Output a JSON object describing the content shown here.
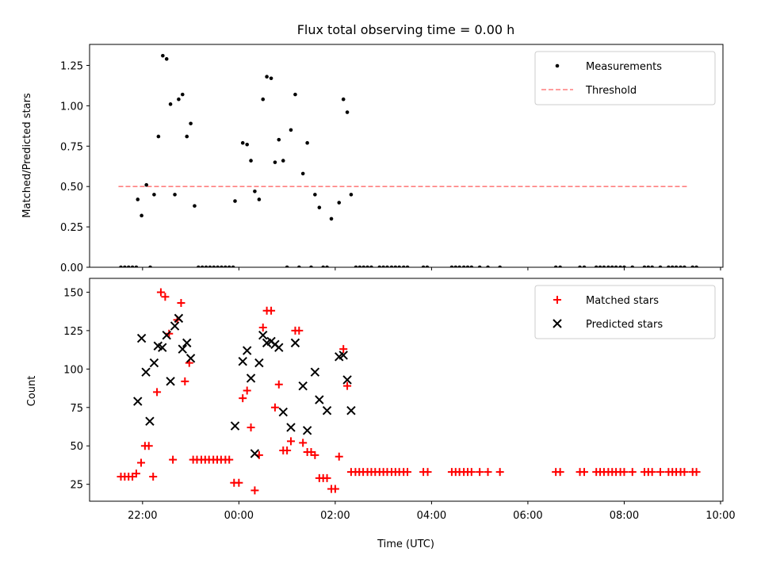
{
  "chart_data": [
    {
      "type": "scatter",
      "title": "Flux total observing time = 0.00 h",
      "xlabel": "",
      "ylabel": "Matched/Predicted stars",
      "x_unit": "hours after 2022-01-01 00:00 UTC",
      "xlim": [
        -3.1,
        10.05
      ],
      "ylim": [
        0,
        1.38
      ],
      "yticks": [
        "0.00",
        "0.25",
        "0.50",
        "0.75",
        "1.00",
        "1.25"
      ],
      "legend": "top-right",
      "threshold": {
        "name": "Threshold",
        "value": 0.5,
        "x_range": [
          -2.5,
          9.3
        ],
        "color": "#ff7f7f",
        "style": "dashed"
      },
      "series": [
        {
          "name": "Measurements",
          "color": "#000000",
          "marker": "dot",
          "points": [
            [
              -2.45,
              0.0
            ],
            [
              -2.37,
              0.0
            ],
            [
              -2.29,
              0.0
            ],
            [
              -2.21,
              0.0
            ],
            [
              -2.13,
              0.0
            ],
            [
              -2.1,
              0.42
            ],
            [
              -2.02,
              0.32
            ],
            [
              -1.92,
              0.51
            ],
            [
              -1.84,
              0.0
            ],
            [
              -1.76,
              0.45
            ],
            [
              -1.67,
              0.81
            ],
            [
              -1.58,
              1.31
            ],
            [
              -1.5,
              1.29
            ],
            [
              -1.42,
              1.01
            ],
            [
              -1.33,
              0.45
            ],
            [
              -1.25,
              1.04
            ],
            [
              -1.17,
              1.07
            ],
            [
              -1.08,
              0.81
            ],
            [
              -1.0,
              0.89
            ],
            [
              -0.92,
              0.38
            ],
            [
              -0.84,
              0.0
            ],
            [
              -0.76,
              0.0
            ],
            [
              -0.68,
              0.0
            ],
            [
              -0.6,
              0.0
            ],
            [
              -0.52,
              0.0
            ],
            [
              -0.44,
              0.0
            ],
            [
              -0.36,
              0.0
            ],
            [
              -0.28,
              0.0
            ],
            [
              -0.2,
              0.0
            ],
            [
              -0.12,
              0.0
            ],
            [
              -0.08,
              0.41
            ],
            [
              0.08,
              0.77
            ],
            [
              0.17,
              0.76
            ],
            [
              0.25,
              0.66
            ],
            [
              0.33,
              0.47
            ],
            [
              0.42,
              0.42
            ],
            [
              0.5,
              1.04
            ],
            [
              0.58,
              1.18
            ],
            [
              0.67,
              1.17
            ],
            [
              0.75,
              0.65
            ],
            [
              0.83,
              0.79
            ],
            [
              0.92,
              0.66
            ],
            [
              1.0,
              0.0
            ],
            [
              1.08,
              0.85
            ],
            [
              1.17,
              1.07
            ],
            [
              1.25,
              0.0
            ],
            [
              1.33,
              0.58
            ],
            [
              1.42,
              0.77
            ],
            [
              1.5,
              0.0
            ],
            [
              1.58,
              0.45
            ],
            [
              1.67,
              0.37
            ],
            [
              1.75,
              0.0
            ],
            [
              1.83,
              0.0
            ],
            [
              1.92,
              0.3
            ],
            [
              2.08,
              0.4
            ],
            [
              2.17,
              1.04
            ],
            [
              2.25,
              0.96
            ],
            [
              2.33,
              0.45
            ],
            [
              2.43,
              0.0
            ],
            [
              2.51,
              0.0
            ],
            [
              2.59,
              0.0
            ],
            [
              2.67,
              0.0
            ],
            [
              2.75,
              0.0
            ],
            [
              2.92,
              0.0
            ],
            [
              3.0,
              0.0
            ],
            [
              3.08,
              0.0
            ],
            [
              3.17,
              0.0
            ],
            [
              3.25,
              0.0
            ],
            [
              3.33,
              0.0
            ],
            [
              3.42,
              0.0
            ],
            [
              3.5,
              0.0
            ],
            [
              3.83,
              0.0
            ],
            [
              3.91,
              0.0
            ],
            [
              4.42,
              0.0
            ],
            [
              4.5,
              0.0
            ],
            [
              4.58,
              0.0
            ],
            [
              4.67,
              0.0
            ],
            [
              4.75,
              0.0
            ],
            [
              4.83,
              0.0
            ],
            [
              5.0,
              0.0
            ],
            [
              5.17,
              0.0
            ],
            [
              5.42,
              0.0
            ],
            [
              6.58,
              0.0
            ],
            [
              6.67,
              0.0
            ],
            [
              7.08,
              0.0
            ],
            [
              7.17,
              0.0
            ],
            [
              7.42,
              0.0
            ],
            [
              7.5,
              0.0
            ],
            [
              7.58,
              0.0
            ],
            [
              7.67,
              0.0
            ],
            [
              7.75,
              0.0
            ],
            [
              7.83,
              0.0
            ],
            [
              7.92,
              0.0
            ],
            [
              8.0,
              0.0
            ],
            [
              8.17,
              0.0
            ],
            [
              8.42,
              0.0
            ],
            [
              8.5,
              0.0
            ],
            [
              8.58,
              0.0
            ],
            [
              8.75,
              0.0
            ],
            [
              8.92,
              0.0
            ],
            [
              9.0,
              0.0
            ],
            [
              9.08,
              0.0
            ],
            [
              9.17,
              0.0
            ],
            [
              9.25,
              0.0
            ],
            [
              9.42,
              0.0
            ],
            [
              9.5,
              0.0
            ]
          ]
        }
      ]
    },
    {
      "type": "scatter",
      "title": "",
      "xlabel": "Time (UTC)",
      "ylabel": "Count",
      "x_unit": "hours after 2022-01-01 00:00 UTC",
      "xlim": [
        -3.1,
        10.05
      ],
      "ylim": [
        14,
        159
      ],
      "xticks": [
        "22:00",
        "00:00",
        "02:00",
        "04:00",
        "06:00",
        "08:00",
        "10:00"
      ],
      "yticks": [
        "25",
        "50",
        "75",
        "100",
        "125",
        "150"
      ],
      "legend": "top-right",
      "series": [
        {
          "name": "Matched stars",
          "color": "#ff0000",
          "marker": "plus",
          "points": [
            [
              -2.45,
              30
            ],
            [
              -2.37,
              30
            ],
            [
              -2.29,
              30
            ],
            [
              -2.21,
              30
            ],
            [
              -2.13,
              32
            ],
            [
              -2.03,
              39
            ],
            [
              -1.95,
              50
            ],
            [
              -1.87,
              50
            ],
            [
              -1.78,
              30
            ],
            [
              -1.7,
              85
            ],
            [
              -1.62,
              150
            ],
            [
              -1.53,
              147
            ],
            [
              -1.45,
              123
            ],
            [
              -1.37,
              41
            ],
            [
              -1.28,
              132
            ],
            [
              -1.2,
              143
            ],
            [
              -1.12,
              92
            ],
            [
              -1.03,
              104
            ],
            [
              -0.95,
              41
            ],
            [
              -0.87,
              41
            ],
            [
              -0.78,
              41
            ],
            [
              -0.7,
              41
            ],
            [
              -0.62,
              41
            ],
            [
              -0.53,
              41
            ],
            [
              -0.45,
              41
            ],
            [
              -0.37,
              41
            ],
            [
              -0.28,
              41
            ],
            [
              -0.2,
              41
            ],
            [
              -0.1,
              26
            ],
            [
              0.0,
              26
            ],
            [
              0.08,
              81
            ],
            [
              0.17,
              86
            ],
            [
              0.25,
              62
            ],
            [
              0.33,
              21
            ],
            [
              0.42,
              44
            ],
            [
              0.5,
              127
            ],
            [
              0.58,
              138
            ],
            [
              0.67,
              138
            ],
            [
              0.75,
              75
            ],
            [
              0.83,
              90
            ],
            [
              0.92,
              47
            ],
            [
              1.0,
              47
            ],
            [
              1.08,
              53
            ],
            [
              1.17,
              125
            ],
            [
              1.25,
              125
            ],
            [
              1.33,
              52
            ],
            [
              1.42,
              46
            ],
            [
              1.5,
              46
            ],
            [
              1.58,
              44
            ],
            [
              1.67,
              29
            ],
            [
              1.75,
              29
            ],
            [
              1.83,
              29
            ],
            [
              1.92,
              22
            ],
            [
              2.0,
              22
            ],
            [
              2.08,
              43
            ],
            [
              2.17,
              113
            ],
            [
              2.25,
              89
            ],
            [
              2.33,
              33
            ],
            [
              2.42,
              33
            ],
            [
              2.5,
              33
            ],
            [
              2.58,
              33
            ],
            [
              2.67,
              33
            ],
            [
              2.75,
              33
            ],
            [
              2.83,
              33
            ],
            [
              2.92,
              33
            ],
            [
              3.0,
              33
            ],
            [
              3.08,
              33
            ],
            [
              3.17,
              33
            ],
            [
              3.25,
              33
            ],
            [
              3.33,
              33
            ],
            [
              3.42,
              33
            ],
            [
              3.5,
              33
            ],
            [
              3.83,
              33
            ],
            [
              3.92,
              33
            ],
            [
              4.42,
              33
            ],
            [
              4.5,
              33
            ],
            [
              4.58,
              33
            ],
            [
              4.67,
              33
            ],
            [
              4.75,
              33
            ],
            [
              4.83,
              33
            ],
            [
              5.0,
              33
            ],
            [
              5.17,
              33
            ],
            [
              5.42,
              33
            ],
            [
              6.58,
              33
            ],
            [
              6.67,
              33
            ],
            [
              7.08,
              33
            ],
            [
              7.17,
              33
            ],
            [
              7.42,
              33
            ],
            [
              7.5,
              33
            ],
            [
              7.58,
              33
            ],
            [
              7.67,
              33
            ],
            [
              7.75,
              33
            ],
            [
              7.83,
              33
            ],
            [
              7.92,
              33
            ],
            [
              8.0,
              33
            ],
            [
              8.17,
              33
            ],
            [
              8.42,
              33
            ],
            [
              8.5,
              33
            ],
            [
              8.58,
              33
            ],
            [
              8.75,
              33
            ],
            [
              8.92,
              33
            ],
            [
              9.0,
              33
            ],
            [
              9.08,
              33
            ],
            [
              9.17,
              33
            ],
            [
              9.25,
              33
            ],
            [
              9.42,
              33
            ],
            [
              9.5,
              33
            ]
          ]
        },
        {
          "name": "Predicted stars",
          "color": "#000000",
          "marker": "x",
          "points": [
            [
              -2.1,
              79
            ],
            [
              -2.02,
              120
            ],
            [
              -1.93,
              98
            ],
            [
              -1.85,
              66
            ],
            [
              -1.76,
              104
            ],
            [
              -1.68,
              115
            ],
            [
              -1.59,
              114
            ],
            [
              -1.5,
              122
            ],
            [
              -1.42,
              92
            ],
            [
              -1.33,
              128
            ],
            [
              -1.25,
              133
            ],
            [
              -1.17,
              113
            ],
            [
              -1.08,
              117
            ],
            [
              -1.0,
              107
            ],
            [
              -0.08,
              63
            ],
            [
              0.08,
              105
            ],
            [
              0.17,
              112
            ],
            [
              0.25,
              94
            ],
            [
              0.33,
              45
            ],
            [
              0.42,
              104
            ],
            [
              0.5,
              122
            ],
            [
              0.58,
              117
            ],
            [
              0.67,
              118
            ],
            [
              0.75,
              116
            ],
            [
              0.83,
              114
            ],
            [
              0.92,
              72
            ],
            [
              1.08,
              62
            ],
            [
              1.17,
              117
            ],
            [
              1.33,
              89
            ],
            [
              1.42,
              60
            ],
            [
              1.58,
              98
            ],
            [
              1.67,
              80
            ],
            [
              1.83,
              73
            ],
            [
              2.08,
              108
            ],
            [
              2.17,
              109
            ],
            [
              2.25,
              93
            ],
            [
              2.33,
              73
            ]
          ]
        }
      ]
    }
  ]
}
